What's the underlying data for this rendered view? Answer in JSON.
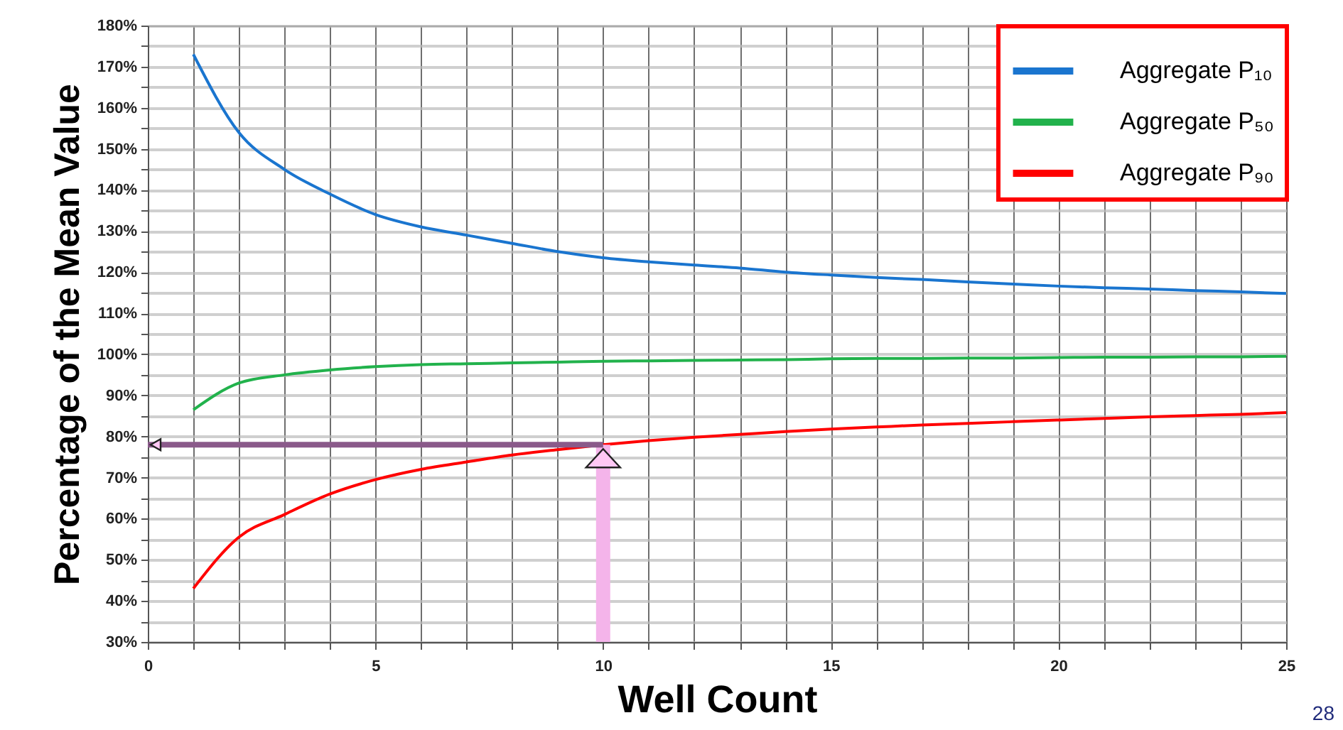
{
  "chart_data": {
    "type": "line",
    "xlabel": "Well Count",
    "ylabel": "Percentage of the Mean Value",
    "x": [
      1,
      2,
      3,
      4,
      5,
      6,
      7,
      8,
      9,
      10,
      11,
      12,
      13,
      14,
      15,
      16,
      17,
      18,
      19,
      20,
      21,
      22,
      23,
      24,
      25
    ],
    "series": [
      {
        "name": "Aggregate P₁₀",
        "color": "#1a75cf",
        "values": [
          173,
          154,
          145,
          139,
          134,
          131,
          129,
          127,
          125,
          123.5,
          122.5,
          121.7,
          121,
          120,
          119.3,
          118.7,
          118.2,
          117.6,
          117.1,
          116.6,
          116.2,
          115.9,
          115.5,
          115.2,
          114.8
        ]
      },
      {
        "name": "Aggregate P₅₀",
        "color": "#22b24c",
        "values": [
          86.5,
          93,
          95,
          96.2,
          97,
          97.5,
          97.7,
          97.9,
          98.1,
          98.3,
          98.4,
          98.5,
          98.6,
          98.7,
          98.9,
          99,
          99,
          99.1,
          99.1,
          99.2,
          99.3,
          99.3,
          99.4,
          99.4,
          99.5
        ]
      },
      {
        "name": "Aggregate P₉₀",
        "color": "#ff0000",
        "values": [
          43,
          55.5,
          61,
          66,
          69.5,
          72,
          73.8,
          75.5,
          76.8,
          78,
          79,
          79.8,
          80.5,
          81.2,
          81.8,
          82.3,
          82.8,
          83.2,
          83.6,
          84,
          84.4,
          84.8,
          85.1,
          85.4,
          85.8
        ]
      }
    ],
    "xlim": [
      0,
      25
    ],
    "xticks": [
      0,
      {
        "value": 1,
        "label": null
      },
      {
        "value": 2,
        "label": null
      },
      {
        "value": 3,
        "label": null
      },
      {
        "value": 4,
        "label": null
      },
      5,
      {
        "value": 6,
        "label": null
      },
      {
        "value": 7,
        "label": null
      },
      {
        "value": 8,
        "label": null
      },
      {
        "value": 9,
        "label": null
      },
      10,
      {
        "value": 11,
        "label": null
      },
      {
        "value": 12,
        "label": null
      },
      {
        "value": 13,
        "label": null
      },
      {
        "value": 14,
        "label": null
      },
      15,
      {
        "value": 16,
        "label": null
      },
      {
        "value": 17,
        "label": null
      },
      {
        "value": 18,
        "label": null
      },
      {
        "value": 19,
        "label": null
      },
      20,
      {
        "value": 21,
        "label": null
      },
      {
        "value": 22,
        "label": null
      },
      {
        "value": 23,
        "label": null
      },
      {
        "value": 24,
        "label": null
      },
      25
    ],
    "ylim": [
      30,
      180
    ],
    "yticks": [
      {
        "value": 30,
        "label": "30%"
      },
      {
        "value": 35,
        "label": null
      },
      {
        "value": 40,
        "label": "40%"
      },
      {
        "value": 45,
        "label": null
      },
      {
        "value": 50,
        "label": "50%"
      },
      {
        "value": 55,
        "label": null
      },
      {
        "value": 60,
        "label": "60%"
      },
      {
        "value": 65,
        "label": null
      },
      {
        "value": 70,
        "label": "70%"
      },
      {
        "value": 75,
        "label": null
      },
      {
        "value": 80,
        "label": "80%"
      },
      {
        "value": 85,
        "label": null
      },
      {
        "value": 90,
        "label": "90%"
      },
      {
        "value": 95,
        "label": null
      },
      {
        "value": 100,
        "label": "100%"
      },
      {
        "value": 105,
        "label": null
      },
      {
        "value": 110,
        "label": "110%"
      },
      {
        "value": 115,
        "label": null
      },
      {
        "value": 120,
        "label": "120%"
      },
      {
        "value": 125,
        "label": null
      },
      {
        "value": 130,
        "label": "130%"
      },
      {
        "value": 135,
        "label": null
      },
      {
        "value": 140,
        "label": "140%"
      },
      {
        "value": 145,
        "label": null
      },
      {
        "value": 150,
        "label": "150%"
      },
      {
        "value": 155,
        "label": null
      },
      {
        "value": 160,
        "label": "160%"
      },
      {
        "value": 165,
        "label": null
      },
      {
        "value": 170,
        "label": "170%"
      },
      {
        "value": 175,
        "label": null
      },
      {
        "value": 180,
        "label": "180%"
      }
    ],
    "ref_lines": [
      {
        "axis": "x",
        "value": 10
      },
      {
        "axis": "y",
        "value": 78
      }
    ],
    "annotations": [
      "28"
    ],
    "grid": true,
    "legend": "top right"
  }
}
